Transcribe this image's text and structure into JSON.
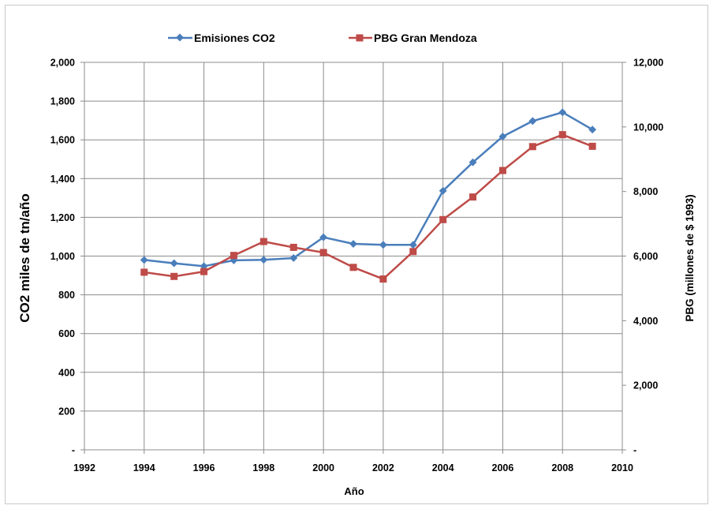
{
  "chart_data": {
    "type": "line",
    "title": "",
    "xlabel": "Año",
    "ylabel_left": "CO2 miles de tn/año",
    "ylabel_right": "PBG (millones de $ 1993)",
    "xlim": [
      1992,
      2010
    ],
    "ylim_left": [
      0,
      2000
    ],
    "ylim_right": [
      0,
      12000
    ],
    "x_ticks": [
      "1992",
      "1994",
      "1996",
      "1998",
      "2000",
      "2002",
      "2004",
      "2006",
      "2008",
      "2010"
    ],
    "y_left_ticks": [
      "-",
      "200",
      "400",
      "600",
      "800",
      "1,000",
      "1,200",
      "1,400",
      "1,600",
      "1,800",
      "2,000"
    ],
    "y_right_ticks": [
      "-",
      "2,000",
      "4,000",
      "6,000",
      "8,000",
      "10,000",
      "12,000"
    ],
    "grid": true,
    "legend_position": "top",
    "series": [
      {
        "name": "Emisiones CO2",
        "axis": "left",
        "color": "#4a7ebb",
        "marker": "diamond",
        "x": [
          1994,
          1995,
          1996,
          1997,
          1998,
          1999,
          2000,
          2001,
          2002,
          2003,
          2004,
          2005,
          2006,
          2007,
          2008,
          2009
        ],
        "values": [
          980,
          963,
          948,
          978,
          981,
          990,
          1097,
          1063,
          1058,
          1058,
          1337,
          1484,
          1617,
          1697,
          1742,
          1653
        ]
      },
      {
        "name": "PBG Gran Mendoza",
        "axis": "right",
        "color": "#be4b48",
        "marker": "square",
        "x": [
          1994,
          1995,
          1996,
          1997,
          1998,
          1999,
          2000,
          2001,
          2002,
          2003,
          2004,
          2005,
          2006,
          2007,
          2008,
          2009
        ],
        "values": [
          5500,
          5370,
          5520,
          6020,
          6450,
          6270,
          6110,
          5650,
          5290,
          6140,
          7130,
          7830,
          8650,
          9390,
          9760,
          9400
        ]
      }
    ]
  }
}
